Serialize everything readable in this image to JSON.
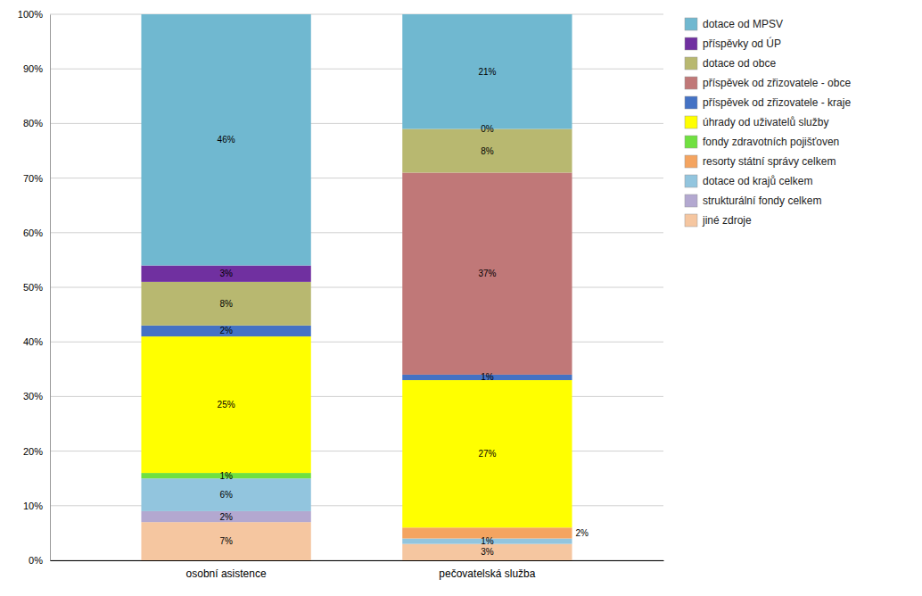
{
  "chart_data": {
    "type": "bar",
    "stacked": true,
    "categories": [
      "osobní asistence",
      "pečovatelská služba"
    ],
    "series": [
      {
        "name": "jiné zdroje",
        "color": "#f5c6a0",
        "values": [
          7,
          3
        ],
        "value_labels": [
          "7%",
          "3%"
        ]
      },
      {
        "name": "strukturální fondy celkem",
        "color": "#b3a8d0",
        "values": [
          2,
          0
        ],
        "value_labels": [
          "2%",
          null
        ]
      },
      {
        "name": "dotace od krajů celkem",
        "color": "#92c5de",
        "values": [
          6,
          1
        ],
        "value_labels": [
          "6%",
          "1%"
        ]
      },
      {
        "name": "resorty státní správy celkem",
        "color": "#f4a460",
        "values": [
          0,
          2
        ],
        "value_labels": [
          null,
          "2%"
        ]
      },
      {
        "name": "fondy zdravotních pojišťoven",
        "color": "#70e040",
        "values": [
          1,
          0
        ],
        "value_labels": [
          "1%",
          null
        ]
      },
      {
        "name": "úhrady od uživatelů služby",
        "color": "#ffff00",
        "values": [
          25,
          27
        ],
        "value_labels": [
          "25%",
          "27%"
        ]
      },
      {
        "name": "příspěvek od zřizovatele - kraje",
        "color": "#4472c4",
        "values": [
          2,
          1
        ],
        "value_labels": [
          "2%",
          "1%"
        ]
      },
      {
        "name": "příspěvek od zřizovatele - obce",
        "color": "#c07878",
        "values": [
          0,
          37
        ],
        "value_labels": [
          null,
          "37%"
        ]
      },
      {
        "name": "dotace od obce",
        "color": "#b8b870",
        "values": [
          8,
          8
        ],
        "value_labels": [
          "8%",
          "8%"
        ]
      },
      {
        "name": "příspěvky od ÚP",
        "color": "#7030a0",
        "values": [
          3,
          0
        ],
        "value_labels": [
          "3%",
          "0%"
        ]
      },
      {
        "name": "dotace od MPSV",
        "color": "#70b8d0",
        "values": [
          46,
          21
        ],
        "value_labels": [
          "46%",
          "21%"
        ]
      }
    ],
    "data_labels": true,
    "ylim": [
      0,
      100
    ],
    "yticks": [
      {
        "value": 0,
        "label": "0%"
      },
      {
        "value": 10,
        "label": "10%"
      },
      {
        "value": 20,
        "label": "20%"
      },
      {
        "value": 30,
        "label": "30%"
      },
      {
        "value": 40,
        "label": "40%"
      },
      {
        "value": 50,
        "label": "50%"
      },
      {
        "value": 60,
        "label": "60%"
      },
      {
        "value": 70,
        "label": "70%"
      },
      {
        "value": 80,
        "label": "80%"
      },
      {
        "value": 90,
        "label": "90%"
      },
      {
        "value": 100,
        "label": "100%"
      }
    ],
    "grid": true,
    "legend": "right"
  }
}
